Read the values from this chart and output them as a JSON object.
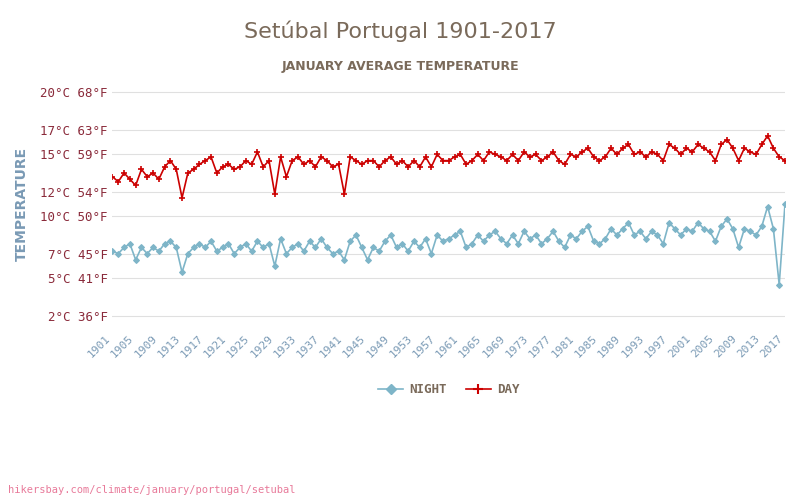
{
  "title": "Setúbal Portugal 1901-2017",
  "subtitle": "JANUARY AVERAGE TEMPERATURE",
  "ylabel": "TEMPERATURE",
  "xlabel_url": "hikersbay.com/climate/january/portugal/setubal",
  "legend_night": "NIGHT",
  "legend_day": "DAY",
  "years": [
    1901,
    1902,
    1903,
    1904,
    1905,
    1906,
    1907,
    1908,
    1909,
    1910,
    1911,
    1912,
    1913,
    1914,
    1915,
    1916,
    1917,
    1918,
    1919,
    1920,
    1921,
    1922,
    1923,
    1924,
    1925,
    1926,
    1927,
    1928,
    1929,
    1930,
    1931,
    1932,
    1933,
    1934,
    1935,
    1936,
    1937,
    1938,
    1939,
    1940,
    1941,
    1942,
    1943,
    1944,
    1945,
    1946,
    1947,
    1948,
    1949,
    1950,
    1951,
    1952,
    1953,
    1954,
    1955,
    1956,
    1957,
    1958,
    1959,
    1960,
    1961,
    1962,
    1963,
    1964,
    1965,
    1966,
    1967,
    1968,
    1969,
    1970,
    1971,
    1972,
    1973,
    1974,
    1975,
    1976,
    1977,
    1978,
    1979,
    1980,
    1981,
    1982,
    1983,
    1984,
    1985,
    1986,
    1987,
    1988,
    1989,
    1990,
    1991,
    1992,
    1993,
    1994,
    1995,
    1996,
    1997,
    1998,
    1999,
    2000,
    2001,
    2002,
    2003,
    2004,
    2005,
    2006,
    2007,
    2008,
    2009,
    2010,
    2011,
    2012,
    2013,
    2014,
    2015,
    2016,
    2017
  ],
  "day_temps": [
    13.2,
    12.8,
    13.5,
    13.0,
    12.5,
    13.8,
    13.2,
    13.5,
    13.0,
    14.0,
    14.5,
    13.8,
    11.5,
    13.5,
    13.8,
    14.2,
    14.5,
    14.8,
    13.5,
    14.0,
    14.2,
    13.8,
    14.0,
    14.5,
    14.2,
    15.2,
    14.0,
    14.5,
    11.8,
    14.8,
    13.2,
    14.5,
    14.8,
    14.2,
    14.5,
    14.0,
    14.8,
    14.5,
    14.0,
    14.2,
    11.8,
    14.8,
    14.5,
    14.2,
    14.5,
    14.5,
    14.0,
    14.5,
    14.8,
    14.2,
    14.5,
    14.0,
    14.5,
    14.0,
    14.8,
    14.0,
    15.0,
    14.5,
    14.5,
    14.8,
    15.0,
    14.2,
    14.5,
    15.0,
    14.5,
    15.2,
    15.0,
    14.8,
    14.5,
    15.0,
    14.5,
    15.2,
    14.8,
    15.0,
    14.5,
    14.8,
    15.2,
    14.5,
    14.2,
    15.0,
    14.8,
    15.2,
    15.5,
    14.8,
    14.5,
    14.8,
    15.5,
    15.0,
    15.5,
    15.8,
    15.0,
    15.2,
    14.8,
    15.2,
    15.0,
    14.5,
    15.8,
    15.5,
    15.0,
    15.5,
    15.2,
    15.8,
    15.5,
    15.2,
    14.5,
    15.8,
    16.2,
    15.5,
    14.5,
    15.5,
    15.2,
    15.0,
    15.8,
    16.5,
    15.5,
    14.8,
    14.5
  ],
  "night_temps": [
    7.2,
    7.0,
    7.5,
    7.8,
    6.5,
    7.5,
    7.0,
    7.5,
    7.2,
    7.8,
    8.0,
    7.5,
    5.5,
    7.0,
    7.5,
    7.8,
    7.5,
    8.0,
    7.2,
    7.5,
    7.8,
    7.0,
    7.5,
    7.8,
    7.2,
    8.0,
    7.5,
    7.8,
    6.0,
    8.2,
    7.0,
    7.5,
    7.8,
    7.2,
    8.0,
    7.5,
    8.2,
    7.5,
    7.0,
    7.2,
    6.5,
    8.0,
    8.5,
    7.5,
    6.5,
    7.5,
    7.2,
    8.0,
    8.5,
    7.5,
    7.8,
    7.2,
    8.0,
    7.5,
    8.2,
    7.0,
    8.5,
    8.0,
    8.2,
    8.5,
    8.8,
    7.5,
    7.8,
    8.5,
    8.0,
    8.5,
    8.8,
    8.2,
    7.8,
    8.5,
    7.8,
    8.8,
    8.2,
    8.5,
    7.8,
    8.2,
    8.8,
    8.0,
    7.5,
    8.5,
    8.2,
    8.8,
    9.2,
    8.0,
    7.8,
    8.2,
    9.0,
    8.5,
    9.0,
    9.5,
    8.5,
    8.8,
    8.2,
    8.8,
    8.5,
    7.8,
    9.5,
    9.0,
    8.5,
    9.0,
    8.8,
    9.5,
    9.0,
    8.8,
    8.0,
    9.2,
    9.8,
    9.0,
    7.5,
    9.0,
    8.8,
    8.5,
    9.2,
    10.8,
    9.0,
    4.5,
    11.0
  ],
  "yticks_c": [
    2,
    5,
    7,
    10,
    12,
    15,
    17,
    20
  ],
  "yticks_f": [
    36,
    41,
    45,
    50,
    54,
    59,
    63,
    68
  ],
  "xtick_years": [
    1901,
    1905,
    1909,
    1913,
    1917,
    1921,
    1925,
    1929,
    1933,
    1937,
    1941,
    1945,
    1949,
    1953,
    1957,
    1961,
    1965,
    1969,
    1973,
    1977,
    1981,
    1985,
    1989,
    1993,
    1997,
    2001,
    2005,
    2009,
    2013,
    2017
  ],
  "day_color": "#cc0000",
  "night_color": "#7eb5c8",
  "title_color": "#7a6a5a",
  "subtitle_color": "#7a6a5a",
  "ylabel_color": "#7a9ab5",
  "ytick_color": "#8a2a3a",
  "xtick_color": "#7a9ab5",
  "url_color": "#e87a9a",
  "background_color": "#ffffff",
  "grid_color": "#e0e0e0",
  "ylim": [
    1,
    21
  ],
  "figsize": [
    8.0,
    5.0
  ],
  "dpi": 100
}
